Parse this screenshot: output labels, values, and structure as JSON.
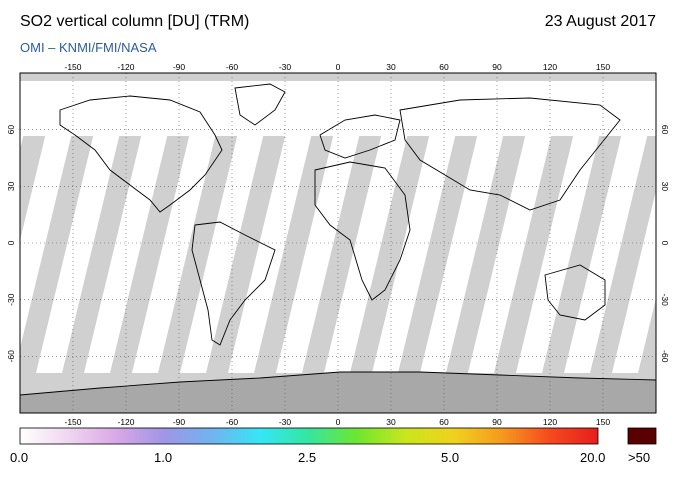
{
  "header": {
    "title": "SO2 vertical column [DU] (TRM)",
    "date": "23 August 2017",
    "subtitle": "OMI  –  KNMI/FMI/NASA"
  },
  "map": {
    "projection": "equirectangular",
    "longitude_ticks": [
      "-150",
      "-120",
      "-90",
      "-60",
      "-30",
      "0",
      "30",
      "60",
      "90",
      "120",
      "150"
    ],
    "latitude_ticks_left": [
      "60",
      "30",
      "0",
      "-30",
      "-60"
    ],
    "latitude_ticks_right": [
      "60",
      "30",
      "0",
      "-30",
      "-60"
    ],
    "colors": {
      "ocean_no_data": "#d0d0d0",
      "land_no_data": "#a8a8a8",
      "swath": "#ffffff"
    }
  },
  "colorbar": {
    "tick_labels": [
      "0.0",
      "1.0",
      "2.5",
      "5.0",
      "20.0"
    ],
    "overflow_label": ">50",
    "overflow_color": "#5a0000",
    "gradient": [
      "#ffffff",
      "#f0d6f0",
      "#d9a8e6",
      "#9f95e6",
      "#6fb5f0",
      "#35e6f5",
      "#35e69f",
      "#6ee630",
      "#c8e61e",
      "#f0d21e",
      "#f59a1e",
      "#f54a1e",
      "#e61e1e"
    ]
  }
}
